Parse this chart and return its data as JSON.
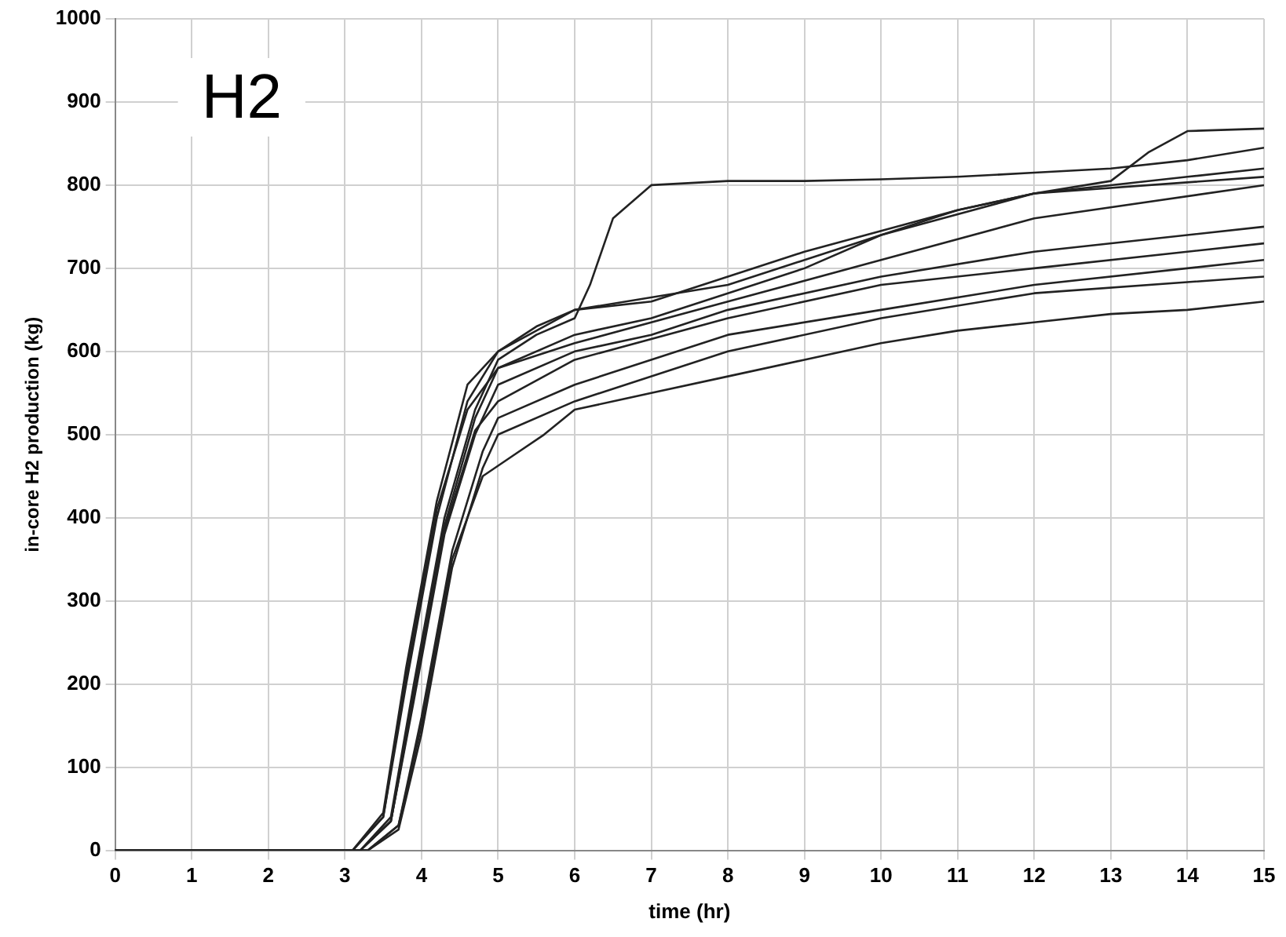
{
  "chart_data": {
    "type": "line",
    "xlabel": "time (hr)",
    "ylabel": "in-core H2 production (kg)",
    "annotations": [
      "H2"
    ],
    "xlim": [
      0,
      15
    ],
    "xticks": [
      0,
      1,
      2,
      3,
      4,
      5,
      6,
      7,
      8,
      9,
      10,
      11,
      12,
      13,
      14,
      15
    ],
    "ylim": [
      0,
      1000
    ],
    "yticks": [
      0,
      100,
      200,
      300,
      400,
      500,
      600,
      700,
      800,
      900,
      1000
    ],
    "grid": true,
    "legend": false,
    "marker": "none",
    "line_style": "solid",
    "series": [
      {
        "color": "#222222",
        "x": [
          0,
          3.1,
          3.5,
          3.8,
          4.2,
          4.6,
          5,
          5.5,
          6,
          7,
          8,
          9,
          10,
          11,
          12,
          13,
          14,
          15
        ],
        "values": [
          0,
          0,
          40,
          200,
          400,
          540,
          600,
          630,
          650,
          660,
          690,
          720,
          745,
          770,
          790,
          800,
          810,
          820
        ]
      },
      {
        "color": "#222222",
        "x": [
          0,
          3.2,
          3.6,
          3.9,
          4.3,
          4.7,
          5,
          5.5,
          6,
          6.2,
          6.5,
          7,
          8,
          9,
          10,
          11,
          12,
          13,
          14,
          15
        ],
        "values": [
          0,
          0,
          40,
          200,
          400,
          530,
          590,
          620,
          640,
          680,
          760,
          800,
          805,
          805,
          807,
          810,
          815,
          820,
          830,
          845
        ]
      },
      {
        "color": "#222222",
        "x": [
          0,
          3.2,
          3.6,
          3.9,
          4.3,
          4.7,
          5,
          6,
          7,
          8,
          9,
          10,
          11,
          12,
          13,
          13.5,
          14,
          15
        ],
        "values": [
          0,
          0,
          35,
          190,
          390,
          520,
          580,
          620,
          640,
          670,
          700,
          740,
          770,
          790,
          805,
          840,
          865,
          868
        ]
      },
      {
        "color": "#222222",
        "x": [
          0,
          3.3,
          3.7,
          4,
          4.4,
          4.8,
          5.2,
          5.6,
          6,
          7,
          8,
          9,
          10,
          11,
          12,
          13,
          14,
          15
        ],
        "values": [
          0,
          0,
          30,
          150,
          350,
          450,
          475,
          500,
          530,
          550,
          570,
          590,
          610,
          625,
          635,
          645,
          650,
          660
        ]
      },
      {
        "color": "#222222",
        "x": [
          0,
          3.2,
          3.6,
          3.9,
          4.3,
          4.7,
          5,
          6,
          7,
          8,
          10,
          12,
          15
        ],
        "values": [
          0,
          0,
          35,
          180,
          380,
          500,
          560,
          600,
          620,
          650,
          690,
          720,
          750
        ]
      },
      {
        "color": "#222222",
        "x": [
          0,
          3.1,
          3.5,
          3.8,
          4.2,
          4.6,
          5,
          6,
          8,
          10,
          12,
          15
        ],
        "values": [
          0,
          0,
          40,
          210,
          410,
          530,
          580,
          610,
          660,
          710,
          760,
          800
        ]
      },
      {
        "color": "#222222",
        "x": [
          0,
          3.3,
          3.7,
          4,
          4.4,
          4.8,
          5,
          6,
          8,
          10,
          12,
          15
        ],
        "values": [
          0,
          0,
          30,
          160,
          360,
          480,
          520,
          560,
          620,
          650,
          680,
          710
        ]
      },
      {
        "color": "#222222",
        "x": [
          0,
          3.2,
          3.6,
          3.9,
          4.3,
          4.7,
          5,
          6,
          8,
          10,
          12,
          15
        ],
        "values": [
          0,
          0,
          35,
          185,
          385,
          505,
          540,
          590,
          640,
          680,
          700,
          730
        ]
      },
      {
        "color": "#222222",
        "x": [
          0,
          3.1,
          3.5,
          3.8,
          4.2,
          4.6,
          5,
          6,
          8,
          10,
          12,
          15
        ],
        "values": [
          0,
          0,
          45,
          220,
          420,
          560,
          600,
          650,
          680,
          740,
          790,
          810
        ]
      },
      {
        "color": "#222222",
        "x": [
          0,
          3.3,
          3.7,
          4,
          4.4,
          4.8,
          5,
          6,
          8,
          10,
          12,
          15
        ],
        "values": [
          0,
          0,
          25,
          140,
          340,
          460,
          500,
          540,
          600,
          640,
          670,
          690
        ]
      }
    ]
  }
}
